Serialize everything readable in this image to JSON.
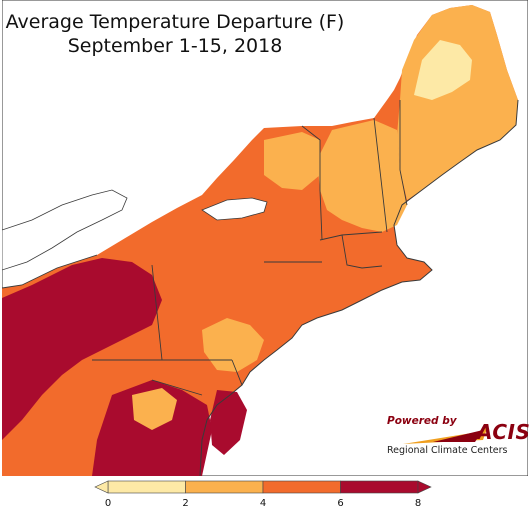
{
  "title": {
    "line1": "Average Temperature Departure (F)",
    "line2": "September 1-15, 2018"
  },
  "logo": {
    "powered_by": "Powered by",
    "brand": "ACIS",
    "subtitle": "Regional Climate Centers"
  },
  "legend": {
    "ticks": [
      "0",
      "2",
      "4",
      "6",
      "8"
    ],
    "bins": [
      {
        "from": 0,
        "to": 2,
        "color": "#fde9a6"
      },
      {
        "from": 2,
        "to": 4,
        "color": "#fbb14e"
      },
      {
        "from": 4,
        "to": 6,
        "color": "#f26b2c"
      },
      {
        "from": 6,
        "to": 8,
        "color": "#a90b2e"
      }
    ],
    "open_ended_low": true,
    "open_ended_high": true
  },
  "colors": {
    "background": "#ffffff",
    "water": "#ffffff",
    "boundary": "#3a3a3a",
    "logo": "#8b0010"
  }
}
